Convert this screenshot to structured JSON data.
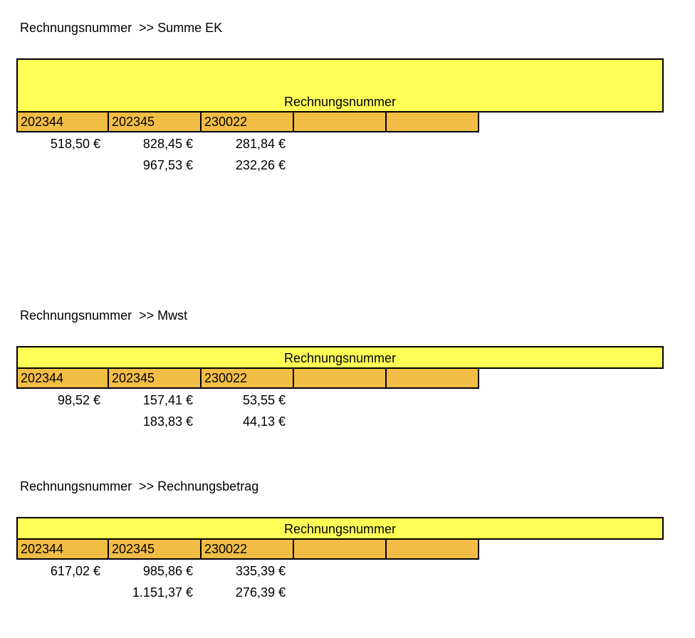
{
  "sections": [
    {
      "title": "Rechnungsnummer  >> Summe EK",
      "band_label": "Rechnungsnummer",
      "headers": [
        "202344",
        "202345",
        "230022",
        "",
        ""
      ],
      "rows": [
        [
          "518,50 €",
          "828,45 €",
          "281,84 €"
        ],
        [
          "",
          "967,53 €",
          "232,26 €"
        ]
      ]
    },
    {
      "title": "Rechnungsnummer  >> Mwst",
      "band_label": "Rechnungsnummer",
      "headers": [
        "202344",
        "202345",
        "230022",
        "",
        ""
      ],
      "rows": [
        [
          "98,52 €",
          "157,41 €",
          "53,55 €"
        ],
        [
          "",
          "183,83 €",
          "44,13 €"
        ]
      ]
    },
    {
      "title": "Rechnungsnummer  >> Rechnungsbetrag",
      "band_label": "Rechnungsnummer",
      "headers": [
        "202344",
        "202345",
        "230022",
        "",
        ""
      ],
      "rows": [
        [
          "617,02 €",
          "985,86 €",
          "335,39 €"
        ],
        [
          "",
          "1.151,37 €",
          "276,39 €"
        ]
      ]
    }
  ]
}
